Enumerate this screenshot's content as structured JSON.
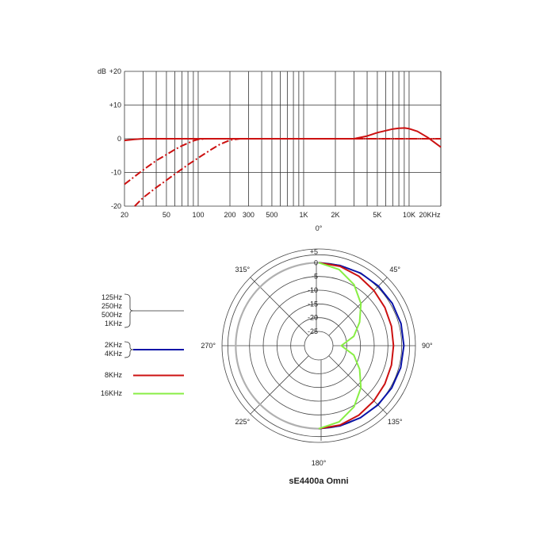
{
  "chart_data": [
    {
      "type": "line",
      "chart": "frequency-response",
      "x_scale": "log",
      "xlim": [
        20,
        20000
      ],
      "ylim": [
        -20,
        20
      ],
      "ylabel": "dB",
      "x_ticks": [
        {
          "value": 20,
          "label": "20"
        },
        {
          "value": 50,
          "label": "50"
        },
        {
          "value": 100,
          "label": "100"
        },
        {
          "value": 200,
          "label": "200"
        },
        {
          "value": 300,
          "label": "300"
        },
        {
          "value": 500,
          "label": "500"
        },
        {
          "value": 1000,
          "label": "1K"
        },
        {
          "value": 2000,
          "label": "2K"
        },
        {
          "value": 5000,
          "label": "5K"
        },
        {
          "value": 10000,
          "label": "10K"
        },
        {
          "value": 20000,
          "label": "20KHz"
        }
      ],
      "y_ticks": [
        {
          "value": 20,
          "label": "+20"
        },
        {
          "value": 10,
          "label": "+10"
        },
        {
          "value": 0,
          "label": "0"
        },
        {
          "value": -10,
          "label": "-10"
        },
        {
          "value": -20,
          "label": "-20"
        }
      ],
      "grid": true,
      "series": [
        {
          "style": "solid",
          "color": "#cc1111",
          "x": [
            20,
            25,
            30,
            40,
            60,
            100,
            200,
            500,
            1000,
            2000,
            3000,
            4000,
            5000,
            6000,
            7000,
            8000,
            9000,
            10000,
            12000,
            15000,
            20000
          ],
          "y": [
            -0.5,
            -0.2,
            0,
            0,
            0,
            0,
            0,
            0,
            0,
            0,
            0,
            0.8,
            1.8,
            2.4,
            2.9,
            3.1,
            3.2,
            3.0,
            2.2,
            0.4,
            -2.5
          ]
        },
        {
          "style": "dashed",
          "color": "#cc1111",
          "x": [
            20,
            30,
            40,
            50,
            60,
            70,
            80,
            90,
            100,
            120,
            150,
            20000
          ],
          "y": [
            -13.5,
            -9.3,
            -6.5,
            -4.7,
            -3.2,
            -2.1,
            -1.3,
            -0.6,
            -0.2,
            0,
            0,
            0
          ]
        },
        {
          "style": "dashed",
          "color": "#cc1111",
          "x": [
            25,
            30,
            40,
            50,
            60,
            80,
            100,
            130,
            160,
            200,
            250,
            20000
          ],
          "y": [
            -20,
            -17.5,
            -14.5,
            -12.3,
            -10.5,
            -7.7,
            -5.7,
            -3.4,
            -1.7,
            -0.4,
            0,
            0
          ]
        }
      ]
    },
    {
      "type": "polar",
      "chart": "polar-pattern",
      "title": "sE4400a Omni",
      "rlim": [
        -25,
        5
      ],
      "radial_ticks": [
        "+5",
        "0",
        "-5",
        "-10",
        "-15",
        "-20",
        "-25"
      ],
      "radial_tick_values": [
        5,
        0,
        -5,
        -10,
        -15,
        -20,
        -25
      ],
      "angle_labels": [
        {
          "angle": 0,
          "label": "0°"
        },
        {
          "angle": 45,
          "label": "45°"
        },
        {
          "angle": 90,
          "label": "90°"
        },
        {
          "angle": 135,
          "label": "135°"
        },
        {
          "angle": 180,
          "label": "180°"
        },
        {
          "angle": 225,
          "label": "225°"
        },
        {
          "angle": 270,
          "label": "270°"
        },
        {
          "angle": 315,
          "label": "315°"
        }
      ],
      "legend": [
        {
          "labels": [
            "125Hz",
            "250Hz",
            "500Hz",
            "1KHz"
          ],
          "color": "#b0b0b0",
          "bracket": true
        },
        {
          "labels": [
            "2KHz",
            "4KHz"
          ],
          "color": "#0a14a8",
          "bracket": true
        },
        {
          "labels": [
            "8KHz"
          ],
          "color": "#cc1111",
          "bracket": false
        },
        {
          "labels": [
            "16KHz"
          ],
          "color": "#88ee44",
          "bracket": false
        }
      ],
      "series": [
        {
          "color": "#b0b0b0",
          "angles": [
            180,
            270,
            360
          ],
          "db": [
            0,
            0,
            0
          ]
        },
        {
          "color": "#0a14a8",
          "angles": [
            0,
            15,
            30,
            45,
            60,
            75,
            90,
            105,
            120,
            135,
            150,
            165,
            180
          ],
          "db": [
            0,
            0,
            0.3,
            0.5,
            0.7,
            0.8,
            0.8,
            0.7,
            0.5,
            0.3,
            0.1,
            0,
            0
          ]
        },
        {
          "color": "#cc1111",
          "angles": [
            0,
            15,
            30,
            45,
            60,
            75,
            90,
            105,
            120,
            135,
            150,
            165,
            180
          ],
          "db": [
            0,
            -0.3,
            -1,
            -1.8,
            -2.4,
            -2.8,
            -3,
            -2.8,
            -2.4,
            -1.8,
            -1,
            -0.3,
            0
          ]
        },
        {
          "color": "#88ee44",
          "angles": [
            0,
            15,
            30,
            45,
            60,
            75,
            90,
            105,
            120,
            135,
            150,
            165,
            180
          ],
          "db": [
            0,
            -1.5,
            -4.5,
            -8.5,
            -13,
            -17,
            -22,
            -17,
            -13,
            -8.5,
            -4.5,
            -1.5,
            0
          ]
        }
      ]
    }
  ]
}
